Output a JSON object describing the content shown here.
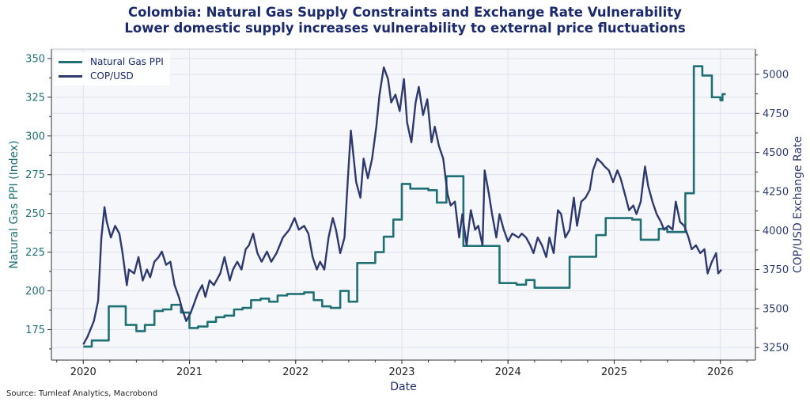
{
  "title": "Colombia: Natural Gas Supply Constraints and Exchange Rate Vulnerability",
  "subtitle": "Lower domestic supply increases vulnerability to external price fluctuations",
  "source": "Source: Turnleaf Analytics, Macrobond",
  "chart_data": {
    "type": "line",
    "xlabel": "Date",
    "ylabel_left": "Natural Gas PPI (Index)",
    "ylabel_right": "COP/USD Exchange Rate",
    "xlim": [
      2019.7,
      2026.33
    ],
    "ylim_left": [
      155.3,
      356.1
    ],
    "ylim_right": [
      3170,
      5162
    ],
    "x_ticks": [
      2020,
      2021,
      2022,
      2023,
      2024,
      2025,
      2026
    ],
    "x_tick_labels": [
      "2020",
      "2021",
      "2022",
      "2023",
      "2024",
      "2025",
      "2026"
    ],
    "y_left_ticks": [
      175,
      200,
      225,
      250,
      275,
      300,
      325,
      350
    ],
    "y_right_ticks": [
      3250,
      3500,
      3750,
      4000,
      4250,
      4500,
      4750,
      5000
    ],
    "grid": true,
    "legend_position": "top-left",
    "colors": {
      "ppi": "#1f7074",
      "cop": "#2e3a6e",
      "left_axis": "#1f7074",
      "right_axis": "#2e3a6e",
      "plot_bg": "#f5f7fa",
      "grid": "#dde2ec"
    },
    "series": [
      {
        "name": "Natural Gas PPI",
        "axis": "left",
        "step": true,
        "x": [
          2020.0,
          2020.08,
          2020.24,
          2020.4,
          2020.5,
          2020.58,
          2020.67,
          2020.75,
          2020.83,
          2020.92,
          2021.0,
          2021.08,
          2021.17,
          2021.25,
          2021.33,
          2021.42,
          2021.5,
          2021.58,
          2021.67,
          2021.75,
          2021.83,
          2021.92,
          2022.08,
          2022.17,
          2022.25,
          2022.33,
          2022.42,
          2022.5,
          2022.58,
          2022.75,
          2022.83,
          2022.92,
          2023.0,
          2023.08,
          2023.25,
          2023.33,
          2023.42,
          2023.58,
          2023.83,
          2023.92,
          2024.08,
          2024.17,
          2024.25,
          2024.5,
          2024.58,
          2024.75,
          2024.83,
          2024.92,
          2025.08,
          2025.17,
          2025.25,
          2025.42,
          2025.5,
          2025.67,
          2025.75,
          2025.83,
          2025.92,
          2026.0,
          2026.02,
          2026.05
        ],
        "values": [
          164,
          168,
          190,
          178,
          174,
          178,
          187,
          188,
          191,
          186,
          176,
          177,
          180,
          183,
          184,
          188,
          189,
          194,
          195,
          193,
          197,
          198,
          199,
          194,
          190,
          189,
          200,
          193,
          218,
          225,
          235,
          246,
          269,
          266,
          265,
          257,
          274,
          229,
          229,
          205,
          204,
          207,
          202,
          202,
          222,
          222,
          236,
          247,
          247,
          246,
          233,
          240,
          238,
          263,
          345,
          339,
          325,
          323,
          327,
          327
        ]
      },
      {
        "name": "COP/USD",
        "axis": "right",
        "step": false,
        "x": [
          2020.0,
          2020.04,
          2020.1,
          2020.14,
          2020.17,
          2020.2,
          2020.22,
          2020.26,
          2020.3,
          2020.34,
          2020.37,
          2020.41,
          2020.43,
          2020.48,
          2020.52,
          2020.56,
          2020.6,
          2020.63,
          2020.67,
          2020.71,
          2020.74,
          2020.78,
          2020.82,
          2020.86,
          2020.9,
          2020.93,
          2020.97,
          2021.01,
          2021.04,
          2021.08,
          2021.12,
          2021.15,
          2021.19,
          2021.23,
          2021.29,
          2021.33,
          2021.38,
          2021.41,
          2021.45,
          2021.49,
          2021.53,
          2021.56,
          2021.6,
          2021.64,
          2021.68,
          2021.73,
          2021.77,
          2021.82,
          2021.88,
          2021.94,
          2021.99,
          2022.03,
          2022.08,
          2022.12,
          2022.16,
          2022.2,
          2022.23,
          2022.27,
          2022.31,
          2022.35,
          2022.38,
          2022.42,
          2022.46,
          2022.49,
          2022.52,
          2022.57,
          2022.61,
          2022.64,
          2022.68,
          2022.72,
          2022.76,
          2022.79,
          2022.83,
          2022.87,
          2022.9,
          2022.94,
          2022.98,
          2023.02,
          2023.05,
          2023.09,
          2023.13,
          2023.16,
          2023.2,
          2023.24,
          2023.28,
          2023.31,
          2023.35,
          2023.39,
          2023.43,
          2023.46,
          2023.5,
          2023.54,
          2023.57,
          2023.61,
          2023.65,
          2023.69,
          2023.72,
          2023.76,
          2023.78,
          2023.82,
          2023.85,
          2023.89,
          2023.92,
          2023.96,
          2024.0,
          2024.04,
          2024.1,
          2024.13,
          2024.17,
          2024.21,
          2024.24,
          2024.28,
          2024.32,
          2024.36,
          2024.39,
          2024.43,
          2024.47,
          2024.5,
          2024.54,
          2024.58,
          2024.62,
          2024.65,
          2024.69,
          2024.73,
          2024.77,
          2024.8,
          2024.84,
          2024.88,
          2024.91,
          2024.95,
          2024.99,
          2025.03,
          2025.06,
          2025.1,
          2025.14,
          2025.18,
          2025.21,
          2025.25,
          2025.29,
          2025.32,
          2025.36,
          2025.4,
          2025.44,
          2025.47,
          2025.51,
          2025.55,
          2025.58,
          2025.62,
          2025.66,
          2025.7,
          2025.73,
          2025.77,
          2025.81,
          2025.85,
          2025.88,
          2025.92,
          2025.96,
          2025.98,
          2026.01
        ],
        "values": [
          3270,
          3320,
          3420,
          3550,
          3950,
          4150,
          4060,
          3955,
          4030,
          3980,
          3855,
          3650,
          3750,
          3725,
          3830,
          3680,
          3750,
          3700,
          3800,
          3830,
          3865,
          3780,
          3800,
          3650,
          3575,
          3500,
          3420,
          3470,
          3525,
          3600,
          3650,
          3575,
          3680,
          3650,
          3725,
          3830,
          3680,
          3750,
          3800,
          3750,
          3880,
          3905,
          3980,
          3855,
          3800,
          3865,
          3800,
          3855,
          3955,
          4005,
          4080,
          4005,
          4030,
          3980,
          3830,
          3750,
          3800,
          3750,
          3955,
          4080,
          4005,
          3855,
          3955,
          4310,
          4640,
          4310,
          4210,
          4460,
          4335,
          4460,
          4665,
          4870,
          5045,
          4970,
          4820,
          4870,
          4765,
          4970,
          4690,
          4565,
          4820,
          4920,
          4740,
          4840,
          4565,
          4665,
          4540,
          4460,
          4235,
          4160,
          4185,
          3955,
          4105,
          3905,
          4130,
          4005,
          4030,
          3905,
          4385,
          4235,
          4105,
          3955,
          4105,
          4005,
          3930,
          3980,
          3955,
          3980,
          3955,
          3905,
          3855,
          3955,
          3905,
          3830,
          3955,
          3855,
          4130,
          4105,
          3955,
          4005,
          4210,
          4030,
          4185,
          4210,
          4260,
          4385,
          4460,
          4435,
          4410,
          4385,
          4310,
          4385,
          4335,
          4235,
          4130,
          4160,
          4105,
          4185,
          4410,
          4285,
          4185,
          4105,
          4055,
          4005,
          4030,
          4005,
          4185,
          4055,
          4030,
          3955,
          3880,
          3905,
          3855,
          3880,
          3725,
          3800,
          3855,
          3725,
          3750
        ]
      }
    ]
  }
}
